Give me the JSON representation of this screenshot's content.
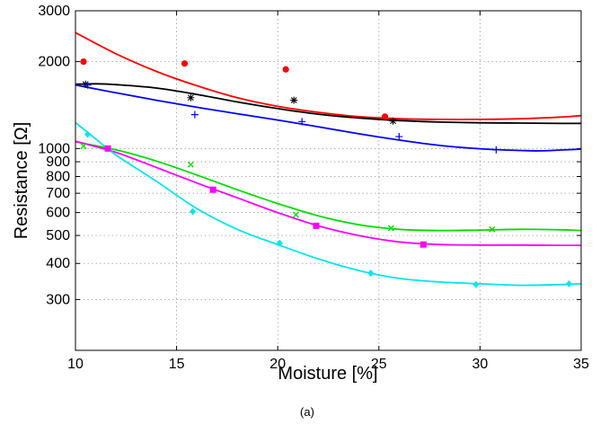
{
  "chart_data": {
    "type": "scatter",
    "caption": "(a)",
    "xlabel": "Moisture [%]",
    "ylabel": "Resistance [Ω]",
    "xlim": [
      10,
      35
    ],
    "ylim": [
      200,
      3000
    ],
    "yscale": "log",
    "grid": true,
    "x_ticks": [
      10,
      15,
      20,
      25,
      30,
      35
    ],
    "y_ticks": [
      300,
      400,
      500,
      600,
      700,
      800,
      900,
      1000,
      2000,
      3000
    ],
    "x_tick_labels": [
      "10",
      "15",
      "20",
      "25",
      "30",
      "35"
    ],
    "y_tick_labels": [
      "300",
      "400",
      "500",
      "600",
      "700",
      "800",
      "900",
      "1000",
      "2000",
      "3000"
    ],
    "series": [
      {
        "color": "#ff0000",
        "marker": "circle",
        "points": [
          [
            10.4,
            2000
          ],
          [
            15.4,
            1970
          ],
          [
            20.4,
            1880
          ],
          [
            25.3,
            1290
          ]
        ],
        "fit": [
          [
            10,
            2520
          ],
          [
            12,
            2130
          ],
          [
            14,
            1850
          ],
          [
            16,
            1650
          ],
          [
            18,
            1500
          ],
          [
            20,
            1400
          ],
          [
            22,
            1335
          ],
          [
            24,
            1290
          ],
          [
            26,
            1268
          ],
          [
            28,
            1262
          ],
          [
            30,
            1262
          ],
          [
            32,
            1268
          ],
          [
            34,
            1285
          ],
          [
            35,
            1300
          ]
        ]
      },
      {
        "color": "#000000",
        "marker": "star",
        "points": [
          [
            10.5,
            1670
          ],
          [
            15.7,
            1500
          ],
          [
            20.8,
            1470
          ],
          [
            25.7,
            1245
          ]
        ],
        "fit": [
          [
            10,
            1670
          ],
          [
            11,
            1675
          ],
          [
            12,
            1665
          ],
          [
            14,
            1620
          ],
          [
            16,
            1540
          ],
          [
            18,
            1450
          ],
          [
            20,
            1375
          ],
          [
            22,
            1315
          ],
          [
            24,
            1275
          ],
          [
            26,
            1250
          ],
          [
            28,
            1235
          ],
          [
            30,
            1228
          ],
          [
            32,
            1225
          ],
          [
            34,
            1222
          ],
          [
            35,
            1222
          ]
        ]
      },
      {
        "color": "#0000ff",
        "marker": "plus",
        "points": [
          [
            10.6,
            1660
          ],
          [
            15.9,
            1310
          ],
          [
            21.2,
            1240
          ],
          [
            26.0,
            1100
          ],
          [
            30.8,
            990
          ]
        ],
        "fit": [
          [
            10,
            1660
          ],
          [
            12,
            1560
          ],
          [
            14,
            1470
          ],
          [
            16,
            1390
          ],
          [
            18,
            1320
          ],
          [
            20,
            1255
          ],
          [
            22,
            1190
          ],
          [
            24,
            1125
          ],
          [
            26,
            1070
          ],
          [
            28,
            1025
          ],
          [
            30,
            998
          ],
          [
            32,
            985
          ],
          [
            33,
            982
          ],
          [
            34,
            988
          ],
          [
            35,
            995
          ]
        ]
      },
      {
        "color": "#00dd00",
        "marker": "x",
        "points": [
          [
            10.4,
            1020
          ],
          [
            15.7,
            880
          ],
          [
            20.9,
            590
          ],
          [
            25.6,
            530
          ],
          [
            30.6,
            525
          ]
        ],
        "fit": [
          [
            10,
            1055
          ],
          [
            12,
            990
          ],
          [
            14,
            905
          ],
          [
            16,
            810
          ],
          [
            18,
            720
          ],
          [
            20,
            645
          ],
          [
            22,
            585
          ],
          [
            24,
            545
          ],
          [
            26,
            525
          ],
          [
            28,
            520
          ],
          [
            30,
            522
          ],
          [
            32,
            525
          ],
          [
            34,
            523
          ],
          [
            35,
            520
          ]
        ]
      },
      {
        "color": "#ff00ff",
        "marker": "square",
        "points": [
          [
            11.6,
            1000
          ],
          [
            16.8,
            720
          ],
          [
            21.9,
            540
          ],
          [
            27.2,
            465
          ]
        ],
        "fit": [
          [
            10,
            1060
          ],
          [
            12,
            970
          ],
          [
            14,
            860
          ],
          [
            16,
            760
          ],
          [
            18,
            675
          ],
          [
            20,
            600
          ],
          [
            22,
            540
          ],
          [
            24,
            500
          ],
          [
            26,
            475
          ],
          [
            28,
            465
          ],
          [
            30,
            463
          ],
          [
            32,
            463
          ],
          [
            34,
            462
          ],
          [
            35,
            462
          ]
        ]
      },
      {
        "color": "#00e5ee",
        "marker": "diamond",
        "points": [
          [
            10.6,
            1120
          ],
          [
            15.8,
            605
          ],
          [
            20.1,
            470
          ],
          [
            24.6,
            370
          ],
          [
            29.8,
            338
          ],
          [
            34.4,
            340
          ]
        ],
        "fit": [
          [
            10,
            1230
          ],
          [
            11,
            1080
          ],
          [
            12,
            950
          ],
          [
            14,
            770
          ],
          [
            16,
            620
          ],
          [
            18,
            525
          ],
          [
            20,
            465
          ],
          [
            22,
            415
          ],
          [
            24,
            378
          ],
          [
            26,
            355
          ],
          [
            28,
            345
          ],
          [
            30,
            340
          ],
          [
            32,
            336
          ],
          [
            34,
            338
          ],
          [
            35,
            340
          ]
        ]
      }
    ]
  }
}
